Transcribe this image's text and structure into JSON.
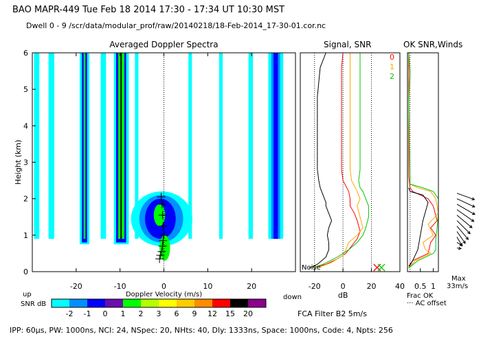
{
  "header": {
    "line1": "BAO  MAPR-449  Tue Feb 18 2014 17:30 - 17:34 UT 10:30 MST",
    "line2": "Dwell  0 -  9   /scr/data/modular_prof/raw/20140218/18-Feb-2014_17-30-01.cor.nc"
  },
  "chart_data": [
    {
      "type": "heatmap",
      "title": "Averaged Doppler Spectra",
      "xlabel": "Doppler Velocity (m/s)",
      "ylabel": "Height (km)",
      "xlim": [
        -30,
        30
      ],
      "ylim": [
        0,
        6
      ],
      "x_ticks": [
        -20,
        -10,
        0,
        10,
        20
      ],
      "y_ticks": [
        0,
        1,
        2,
        3,
        4,
        5,
        6
      ],
      "x_left_note": "up",
      "x_right_note": "down",
      "colorbar": {
        "label": "SNR dB",
        "ticks": [
          "-2",
          "-1",
          "0",
          "1",
          "2",
          "3",
          "6",
          "9",
          "12",
          "15",
          "20"
        ],
        "colors": [
          "#00ffff",
          "#0090ff",
          "#0000ff",
          "#6a0dad",
          "#00ff00",
          "#b4ff00",
          "#ffff00",
          "#ffcc00",
          "#ff8c00",
          "#ff0000",
          "#000000",
          "#8b008b"
        ]
      },
      "bands": [
        {
          "name": "band -30",
          "x_from": -29.6,
          "x_to": -28.4,
          "y_from": 0.9,
          "y_to": 6.0,
          "color": "#00ffff"
        },
        {
          "name": "band -26",
          "x_from": -26.3,
          "x_to": -25.0,
          "y_from": 0.9,
          "y_to": 6.0,
          "color": "#00ffff"
        },
        {
          "name": "band -19 outer",
          "x_from": -19.2,
          "x_to": -17.0,
          "y_from": 0.75,
          "y_to": 6.0,
          "color": "#00ffff"
        },
        {
          "name": "band -19 mid",
          "x_from": -18.7,
          "x_to": -17.5,
          "y_from": 0.8,
          "y_to": 6.0,
          "color": "#0000ff"
        },
        {
          "name": "band -19 core",
          "x_from": -18.3,
          "x_to": -17.9,
          "y_from": 0.9,
          "y_to": 6.0,
          "color": "#00ff00"
        },
        {
          "name": "band -14",
          "x_from": -14.4,
          "x_to": -13.2,
          "y_from": 0.9,
          "y_to": 6.0,
          "color": "#00ffff"
        },
        {
          "name": "band -10 outer",
          "x_from": -11.4,
          "x_to": -8.0,
          "y_from": 0.75,
          "y_to": 6.0,
          "color": "#00ffff"
        },
        {
          "name": "band -10 mid",
          "x_from": -10.9,
          "x_to": -8.6,
          "y_from": 0.8,
          "y_to": 6.0,
          "color": "#0000ff"
        },
        {
          "name": "band -10 core",
          "x_from": -10.4,
          "x_to": -9.0,
          "y_from": 0.9,
          "y_to": 6.0,
          "color": "#00ff00"
        },
        {
          "name": "band -10 line",
          "x_from": -9.9,
          "x_to": -9.6,
          "y_from": 0.9,
          "y_to": 6.0,
          "color": "#000000"
        },
        {
          "name": "band -6",
          "x_from": -6.6,
          "x_to": -5.8,
          "y_from": 0.9,
          "y_to": 6.0,
          "color": "#00ffff"
        },
        {
          "name": "band +6",
          "x_from": 5.6,
          "x_to": 6.4,
          "y_from": 0.9,
          "y_to": 6.0,
          "color": "#00ffff"
        },
        {
          "name": "band +13",
          "x_from": 12.6,
          "x_to": 13.4,
          "y_from": 0.9,
          "y_to": 6.0,
          "color": "#00ffff"
        },
        {
          "name": "band +19",
          "x_from": 19.3,
          "x_to": 20.3,
          "y_from": 0.9,
          "y_to": 6.0,
          "color": "#00ffff"
        },
        {
          "name": "band +25 outer",
          "x_from": 23.8,
          "x_to": 27.2,
          "y_from": 0.9,
          "y_to": 6.0,
          "color": "#00ffff"
        },
        {
          "name": "band +25 mid",
          "x_from": 24.5,
          "x_to": 26.5,
          "y_from": 0.9,
          "y_to": 6.0,
          "color": "#0090ff"
        },
        {
          "name": "band +25 core",
          "x_from": 25.0,
          "x_to": 26.0,
          "y_from": 0.9,
          "y_to": 6.0,
          "color": "#0000ff"
        }
      ],
      "blobs": [
        {
          "name": "signal outer",
          "cx": -0.5,
          "cy": 1.45,
          "rx": 7.0,
          "ry": 0.75,
          "color": "#00ffff"
        },
        {
          "name": "signal ring",
          "cx": -0.6,
          "cy": 1.45,
          "rx": 5.0,
          "ry": 0.65,
          "color": "#0090ff"
        },
        {
          "name": "signal mid",
          "cx": -0.8,
          "cy": 1.45,
          "rx": 3.5,
          "ry": 0.55,
          "color": "#0000ff"
        },
        {
          "name": "signal core",
          "cx": -1.0,
          "cy": 1.55,
          "rx": 1.3,
          "ry": 0.3,
          "color": "#00ff00"
        },
        {
          "name": "signal tail",
          "cx": 0.2,
          "cy": 0.65,
          "rx": 1.2,
          "ry": 0.35,
          "color": "#00ff00"
        }
      ],
      "wind_marks": [
        {
          "x": -0.6,
          "y": 2.05
        },
        {
          "x": -0.4,
          "y": 1.85
        },
        {
          "x": -0.3,
          "y": 1.55
        },
        {
          "x": -0.2,
          "y": 1.25
        },
        {
          "x": 0.0,
          "y": 1.0
        },
        {
          "x": -0.2,
          "y": 0.85
        },
        {
          "x": -0.3,
          "y": 0.7
        },
        {
          "x": -0.5,
          "y": 0.55
        },
        {
          "x": -0.8,
          "y": 0.45
        },
        {
          "x": -1.0,
          "y": 0.35
        }
      ],
      "noise_label": "Noise"
    },
    {
      "type": "line",
      "title": "Signal, SNR",
      "xlabel": "dB",
      "xlim": [
        -30,
        40
      ],
      "ylim": [
        0,
        6
      ],
      "x_ticks": [
        -20,
        0,
        20,
        40
      ],
      "dotted_x": [
        -20,
        0,
        20
      ],
      "series": [
        {
          "name": "signal",
          "color": "#000000",
          "x": [
            -12,
            -16,
            -17,
            -18,
            -18,
            -18,
            -18,
            -18,
            -18,
            -17,
            -16,
            -15,
            -14,
            -13,
            -12,
            -12,
            -10,
            -8,
            -10,
            -11,
            -10,
            -10,
            -12,
            -18,
            -24
          ],
          "y": [
            6.0,
            5.6,
            5.2,
            4.8,
            4.4,
            4.0,
            3.6,
            3.2,
            2.8,
            2.5,
            2.3,
            2.2,
            2.1,
            2.0,
            1.9,
            1.8,
            1.6,
            1.4,
            1.2,
            1.0,
            0.8,
            0.6,
            0.4,
            0.2,
            0.1
          ]
        },
        {
          "name": "snr 0",
          "color": "#ff0000",
          "x": [
            0,
            -1,
            -1,
            -1,
            -1,
            -1,
            -1,
            -1,
            -1,
            0,
            2,
            4,
            5,
            5,
            8,
            10,
            12,
            10,
            6,
            2,
            -4,
            -12,
            -22
          ],
          "y": [
            6.0,
            5.6,
            5.2,
            4.8,
            4.4,
            4.0,
            3.6,
            3.2,
            2.8,
            2.5,
            2.35,
            2.2,
            2.0,
            1.8,
            1.6,
            1.4,
            1.1,
            0.9,
            0.7,
            0.5,
            0.35,
            0.2,
            0.1
          ]
        },
        {
          "name": "snr 1",
          "color": "#ffa500",
          "x": [
            5,
            5,
            5,
            5,
            5,
            5,
            5,
            5,
            5,
            6,
            8,
            10,
            12,
            10,
            12,
            14,
            10,
            4,
            2,
            0,
            -8,
            -18
          ],
          "y": [
            6.0,
            5.6,
            5.2,
            4.8,
            4.4,
            4.0,
            3.6,
            3.2,
            2.8,
            2.5,
            2.35,
            2.2,
            2.0,
            1.8,
            1.5,
            1.2,
            1.0,
            0.8,
            0.6,
            0.45,
            0.25,
            0.1
          ]
        },
        {
          "name": "snr 2",
          "color": "#00c800",
          "x": [
            12,
            12,
            12,
            12,
            12,
            12,
            12,
            12,
            12,
            11,
            12,
            14,
            16,
            18,
            18,
            16,
            14,
            10,
            4,
            -4,
            -14,
            -22
          ],
          "y": [
            6.0,
            5.6,
            5.2,
            4.8,
            4.4,
            4.0,
            3.6,
            3.2,
            2.8,
            2.5,
            2.3,
            2.2,
            2.0,
            1.8,
            1.5,
            1.2,
            1.0,
            0.8,
            0.6,
            0.4,
            0.2,
            0.1
          ]
        }
      ],
      "noise_markers": [
        {
          "x": 24,
          "color": "#ff0000"
        },
        {
          "x": 27,
          "color": "#00c800"
        }
      ],
      "legend": [
        {
          "label": "0",
          "color": "#ff0000"
        },
        {
          "label": "1",
          "color": "#ffa500"
        },
        {
          "label": "2",
          "color": "#00c800"
        }
      ]
    },
    {
      "type": "line",
      "title": "OK SNR,Winds",
      "xlabel": "Frac OK",
      "xlabel2": "··· AC offset",
      "xlim": [
        0,
        1.2
      ],
      "ylim": [
        0,
        6
      ],
      "x_ticks": [
        0.5,
        1
      ],
      "series": [
        {
          "name": "ok 0",
          "color": "#ff0000",
          "x": [
            0.05,
            0.05,
            0.1,
            0.2,
            0.5,
            0.8,
            1.0,
            1.15,
            0.9,
            1.1,
            0.9,
            0.8,
            0.2,
            0.05
          ],
          "y": [
            6.0,
            2.6,
            2.3,
            2.2,
            2.1,
            2.0,
            1.8,
            1.4,
            1.2,
            1.0,
            0.8,
            0.5,
            0.3,
            0.1
          ]
        },
        {
          "name": "ok 1",
          "color": "#ffa500",
          "x": [
            0.05,
            0.1,
            0.05,
            0.1,
            0.4,
            0.9,
            1.1,
            1.2,
            0.8,
            1.0,
            0.6,
            0.7,
            0.9,
            0.3,
            0.05
          ],
          "y": [
            6.0,
            5.5,
            4.5,
            2.4,
            2.3,
            2.2,
            2.0,
            1.6,
            1.3,
            1.0,
            0.8,
            0.6,
            0.5,
            0.3,
            0.1
          ]
        },
        {
          "name": "ok 2",
          "color": "#00c800",
          "x": [
            0.05,
            0.1,
            0.05,
            0.1,
            0.6,
            1.0,
            1.2,
            1.2,
            1.15,
            1.1,
            1.1,
            1.0,
            0.4,
            0.05
          ],
          "y": [
            6.0,
            5.4,
            4.8,
            2.4,
            2.3,
            2.2,
            2.0,
            1.6,
            1.2,
            0.9,
            0.6,
            0.5,
            0.3,
            0.1
          ]
        },
        {
          "name": "ok k",
          "color": "#000000",
          "x": [
            0.05,
            0.1,
            0.6,
            0.8,
            0.6,
            0.5,
            0.4,
            0.2,
            0.05
          ],
          "y": [
            2.3,
            2.2,
            2.1,
            1.9,
            1.4,
            1.0,
            0.6,
            0.3,
            0.15
          ]
        }
      ],
      "ac_offset_x": 0.1
    },
    {
      "type": "scatter",
      "title": "Winds",
      "max_label": "Max",
      "max_value": "33m/s",
      "arrows": [
        {
          "y": 2.15,
          "dir_deg": -20,
          "len": 0.9
        },
        {
          "y": 2.0,
          "dir_deg": -25,
          "len": 0.95
        },
        {
          "y": 1.85,
          "dir_deg": -30,
          "len": 1.0
        },
        {
          "y": 1.7,
          "dir_deg": -35,
          "len": 1.0
        },
        {
          "y": 1.55,
          "dir_deg": -40,
          "len": 0.95
        },
        {
          "y": 1.4,
          "dir_deg": -45,
          "len": 0.9
        },
        {
          "y": 1.25,
          "dir_deg": -50,
          "len": 0.85
        },
        {
          "y": 1.1,
          "dir_deg": -55,
          "len": 0.7
        },
        {
          "y": 0.95,
          "dir_deg": -60,
          "len": 0.5
        },
        {
          "y": 0.8,
          "dir_deg": -30,
          "len": 0.3
        },
        {
          "y": 0.65,
          "dir_deg": -10,
          "len": 0.2
        }
      ]
    }
  ],
  "footer": {
    "snr_label": "SNR dB",
    "filter": "FCA Filter B2  5m/s",
    "params": "IPP: 60μs,  PW: 1000ns,  NCI: 24,  NSpec: 20,  NHts: 40,  Dly: 1333ns,  Space: 1000ns,  Code: 4,  Npts: 256"
  }
}
